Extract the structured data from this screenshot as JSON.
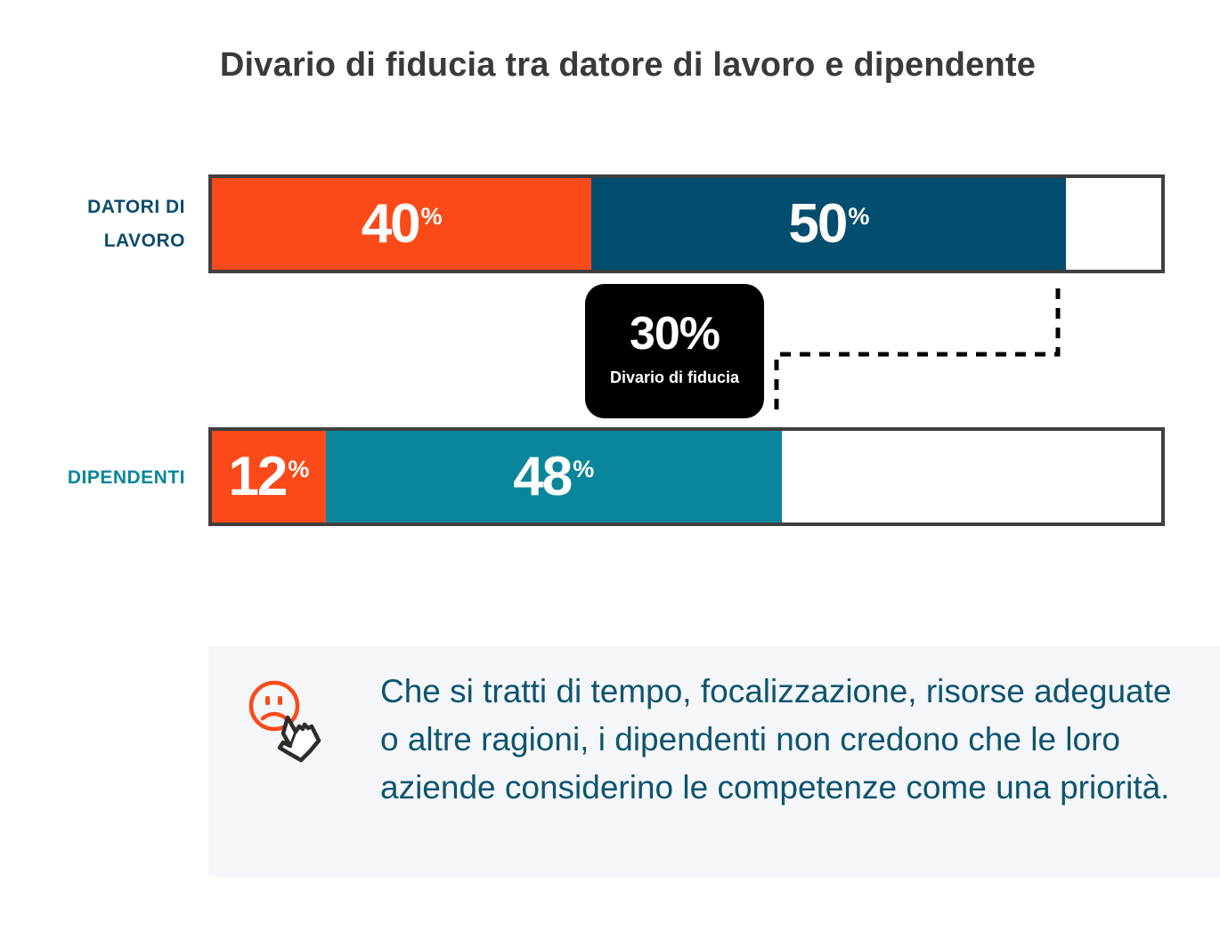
{
  "title": "Divario di fiducia tra datore di lavoro e dipendente",
  "colors": {
    "orange": "#fb4a19",
    "navy": "#034d6e",
    "teal": "#0a869b",
    "label_navy": "#0b4d6b",
    "label_teal": "#0a869b"
  },
  "chart_data": {
    "type": "bar",
    "orientation": "horizontal",
    "stacked": true,
    "title": "Divario di fiducia tra datore di lavoro e dipendente",
    "xlim": [
      0,
      100
    ],
    "categories": [
      "DATORI DI LAVORO",
      "DIPENDENTI"
    ],
    "series": [
      {
        "name": "segment-1",
        "color": "#fb4a19",
        "values": [
          40,
          12
        ]
      },
      {
        "name": "segment-2",
        "color": [
          "#034d6e",
          "#0a869b"
        ],
        "values": [
          50,
          48
        ]
      }
    ],
    "rows": [
      {
        "label_lines": [
          "DATORI DI",
          "LAVORO"
        ],
        "segments": [
          {
            "value": 40,
            "text": "40",
            "unit": "%",
            "color": "#fb4a19"
          },
          {
            "value": 50,
            "text": "50",
            "unit": "%",
            "color": "#034d6e"
          }
        ]
      },
      {
        "label_lines": [
          "DIPENDENTI"
        ],
        "segments": [
          {
            "value": 12,
            "text": "12",
            "unit": "%",
            "color": "#fb4a19"
          },
          {
            "value": 48,
            "text": "48",
            "unit": "%",
            "color": "#0a869b"
          }
        ]
      }
    ],
    "annotation": {
      "value": 30,
      "text": "30%",
      "label": "Divario di fiducia"
    }
  },
  "note": {
    "icon": "sad-face-pointing-hand-icon",
    "text": "Che si tratti di tempo, focalizzazione, risorse adeguate o altre ragioni, i dipendenti non credono che le loro aziende considerino le competenze come una priorità."
  }
}
